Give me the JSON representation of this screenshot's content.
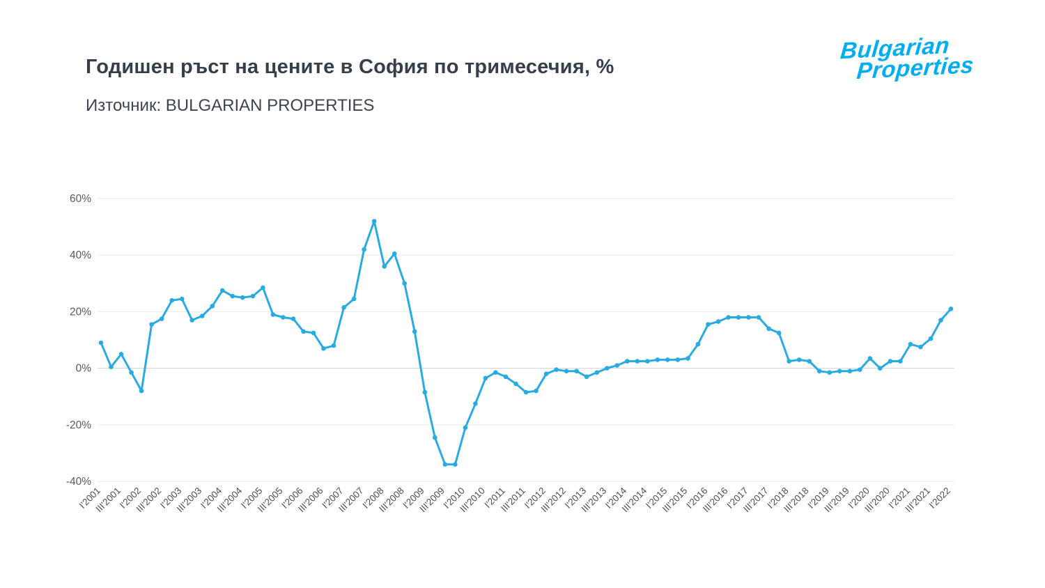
{
  "header": {
    "title": "Годишен ръст на цените в София по тримесечия, %",
    "source": "Източник: BULGARIAN PROPERTIES"
  },
  "logo": {
    "line1": "Bulgarian",
    "line2": "Properties",
    "color": "#00aeef"
  },
  "chart_data": {
    "type": "line",
    "title": "Годишен ръст на цените в София по тримесечия, %",
    "series_name": "Годишен ръст на цените в София, %",
    "series_color": "#29abe2",
    "marker": "circle",
    "grid": true,
    "legend": "none",
    "ylim": [
      -40,
      60
    ],
    "y_ticks": [
      60,
      40,
      20,
      0,
      -20,
      -40
    ],
    "y_tick_suffix": "%",
    "x_tick_labels": [
      "I'2001",
      "III'2001",
      "I'2002",
      "III'2002",
      "I'2003",
      "III'2003",
      "I'2004",
      "III'2004",
      "I'2005",
      "III'2005",
      "I'2006",
      "III'2006",
      "I'2007",
      "III'2007",
      "I'2008",
      "III'2008",
      "I'2009",
      "III'2009",
      "I'2010",
      "III'2010",
      "I'2011",
      "III'2011",
      "I'2012",
      "III'2012",
      "I'2013",
      "III'2013",
      "I'2014",
      "III'2014",
      "I'2015",
      "III'2015",
      "I'2016",
      "III'2016",
      "I'2017",
      "III'2017",
      "I'2018",
      "III'2018",
      "I'2019",
      "III'2019",
      "I'2020",
      "III'2020",
      "I'2021",
      "III'2021",
      "I'2022"
    ],
    "x_tick_every": 2,
    "values": [
      9,
      0.5,
      5,
      -1.5,
      -8,
      15.5,
      17.5,
      24,
      24.5,
      17,
      18.5,
      22,
      27.5,
      25.5,
      25,
      25.5,
      28.5,
      19,
      18,
      17.5,
      13,
      12.5,
      7,
      8,
      21.5,
      24.5,
      42,
      52,
      36,
      40.5,
      30,
      13,
      -8.5,
      -24.5,
      -34,
      -34,
      -21,
      -12.5,
      -3.5,
      -1.5,
      -3,
      -5.5,
      -8.5,
      -8,
      -2,
      -0.5,
      -1,
      -1,
      -3,
      -1.5,
      0,
      1,
      2.5,
      2.5,
      2.5,
      3,
      3,
      3,
      3.5,
      8.5,
      15.5,
      16.5,
      18,
      18,
      18,
      18,
      14,
      12.5,
      2.5,
      3,
      2.5,
      -1,
      -1.5,
      -1,
      -1,
      -0.5,
      3.5,
      0,
      2.5,
      2.5,
      8.5,
      7.5,
      10.5,
      17,
      21
    ]
  }
}
